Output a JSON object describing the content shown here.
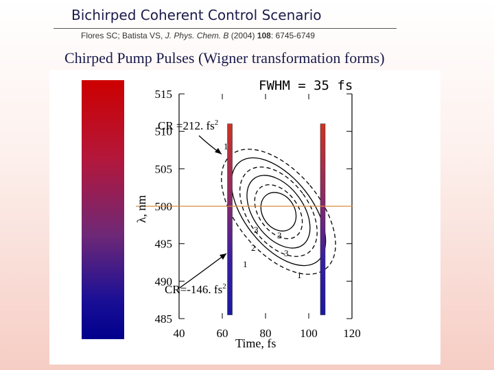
{
  "slide": {
    "title": "Bichirped Coherent Control Scenario",
    "citation": {
      "authors": "Flores SC; Batista VS, ",
      "journal": "J. Phys. Chem. B",
      "year": " (2004) ",
      "volume": "108",
      "pages": ": 6745-6749"
    },
    "panel_title": "Chirped Pump Pulses (Wigner transformation forms)"
  },
  "chart_data": {
    "type": "contour",
    "fwhm_label": "FWHM = 35 fs",
    "xlabel": "Time, fs",
    "ylabel": "λ, nm",
    "xlim": [
      40,
      120
    ],
    "ylim": [
      485,
      515
    ],
    "x_ticks": [
      40,
      60,
      80,
      100,
      120
    ],
    "y_ticks": [
      485,
      490,
      495,
      500,
      505,
      510,
      515
    ],
    "reference_line_nm": 500,
    "annotations": {
      "cr_pos": "CR =212. fs",
      "cr_pos_sup": "2",
      "cr_neg": "CR=-146. fs",
      "cr_neg_sup": "2"
    },
    "pulses": [
      {
        "name": "CR 212",
        "center_time_fs": 66,
        "center_nm": 500,
        "style": "solid"
      },
      {
        "name": "CR -146",
        "center_time_fs": 104,
        "center_nm": 500,
        "style": "dashed"
      }
    ],
    "contour_levels": [
      "1",
      "2",
      "3"
    ],
    "bars": [
      {
        "time_fs": 63.5,
        "nm_range": [
          485.5,
          511
        ]
      },
      {
        "time_fs": 106.5,
        "nm_range": [
          485.5,
          511
        ]
      }
    ],
    "colorbar": {
      "top_color": "#cc0000",
      "bottom_color": "#00008c"
    }
  }
}
